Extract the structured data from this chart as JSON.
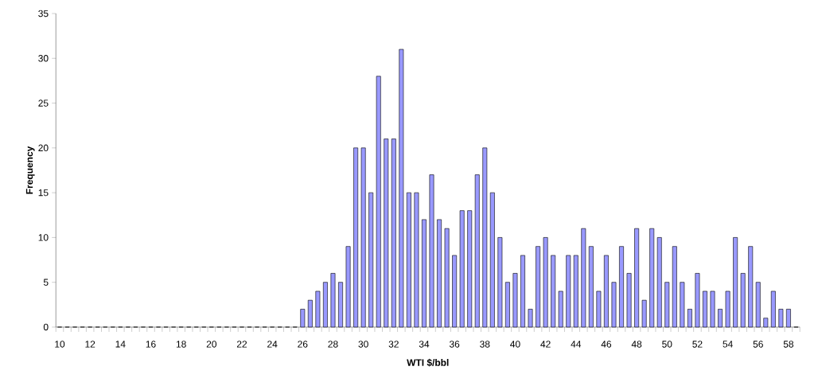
{
  "chart_data": {
    "type": "bar",
    "xlabel": "WTI $/bbl",
    "ylabel": "Frequency",
    "categories": [
      "10",
      null,
      null,
      null,
      "12",
      null,
      null,
      null,
      "14",
      null,
      null,
      null,
      "16",
      null,
      null,
      null,
      "18",
      null,
      null,
      null,
      "20",
      null,
      null,
      null,
      "22",
      null,
      null,
      null,
      "24",
      null,
      null,
      null,
      "26",
      null,
      null,
      null,
      "28",
      null,
      null,
      null,
      "30",
      null,
      null,
      null,
      "32",
      null,
      null,
      null,
      "34",
      null,
      null,
      null,
      "36",
      null,
      null,
      null,
      "38",
      null,
      null,
      null,
      "40",
      null,
      null,
      null,
      "42",
      null,
      null,
      null,
      "44",
      null,
      null,
      null,
      "46",
      null,
      null,
      null,
      "48",
      null,
      null,
      null,
      "50",
      null,
      null,
      null,
      "52",
      null,
      null,
      null,
      "54",
      null,
      null,
      null,
      "56",
      null,
      null,
      null,
      "58",
      null
    ],
    "values": [
      0,
      0,
      0,
      0,
      0,
      0,
      0,
      0,
      0,
      0,
      0,
      0,
      0,
      0,
      0,
      0,
      0,
      0,
      0,
      0,
      0,
      0,
      0,
      0,
      0,
      0,
      0,
      0,
      0,
      0,
      0,
      0,
      2,
      3,
      4,
      5,
      6,
      5,
      9,
      20,
      20,
      15,
      28,
      21,
      21,
      31,
      15,
      15,
      12,
      17,
      12,
      11,
      8,
      13,
      13,
      17,
      20,
      15,
      10,
      5,
      6,
      8,
      2,
      9,
      10,
      8,
      4,
      8,
      8,
      11,
      9,
      4,
      8,
      5,
      9,
      6,
      11,
      3,
      11,
      10,
      5,
      9,
      5,
      2,
      6,
      4,
      4,
      2,
      4,
      10,
      6,
      9,
      5,
      1,
      4,
      2,
      2,
      0
    ],
    "color": "#9999ff",
    "ylim": [
      0,
      35
    ],
    "yticks": [
      0,
      5,
      10,
      15,
      20,
      25,
      30,
      35
    ]
  }
}
